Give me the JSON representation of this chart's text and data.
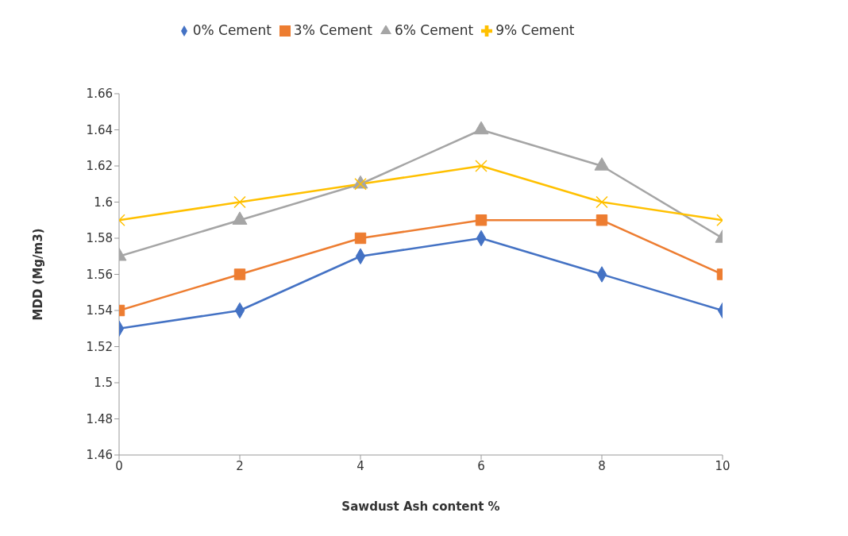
{
  "chart_data": {
    "type": "line",
    "xlabel": "Sawdust Ash content %",
    "ylabel": "MDD (Mg/m3)",
    "x": [
      0,
      2,
      4,
      6,
      8,
      10
    ],
    "xlim": [
      0,
      10
    ],
    "xticks": [
      0,
      2,
      4,
      6,
      8,
      10
    ],
    "ylim": [
      1.46,
      1.66
    ],
    "yticks": [
      1.46,
      1.48,
      1.5,
      1.52,
      1.54,
      1.56,
      1.58,
      1.6,
      1.62,
      1.64,
      1.66
    ],
    "grid": false,
    "legend": "top",
    "series": [
      {
        "name": "0% Cement",
        "color": "#4472c4",
        "marker": "diamond",
        "values": [
          1.53,
          1.54,
          1.57,
          1.58,
          1.56,
          1.54
        ]
      },
      {
        "name": "3% Cement",
        "color": "#ed7d31",
        "marker": "square",
        "values": [
          1.54,
          1.56,
          1.58,
          1.59,
          1.59,
          1.56
        ]
      },
      {
        "name": "6% Cement",
        "color": "#a5a5a5",
        "marker": "triangle",
        "values": [
          1.57,
          1.59,
          1.61,
          1.64,
          1.62,
          1.58
        ]
      },
      {
        "name": "9% Cement",
        "color": "#ffc000",
        "marker": "cross",
        "values": [
          1.59,
          1.6,
          1.61,
          1.62,
          1.6,
          1.59
        ]
      }
    ]
  }
}
